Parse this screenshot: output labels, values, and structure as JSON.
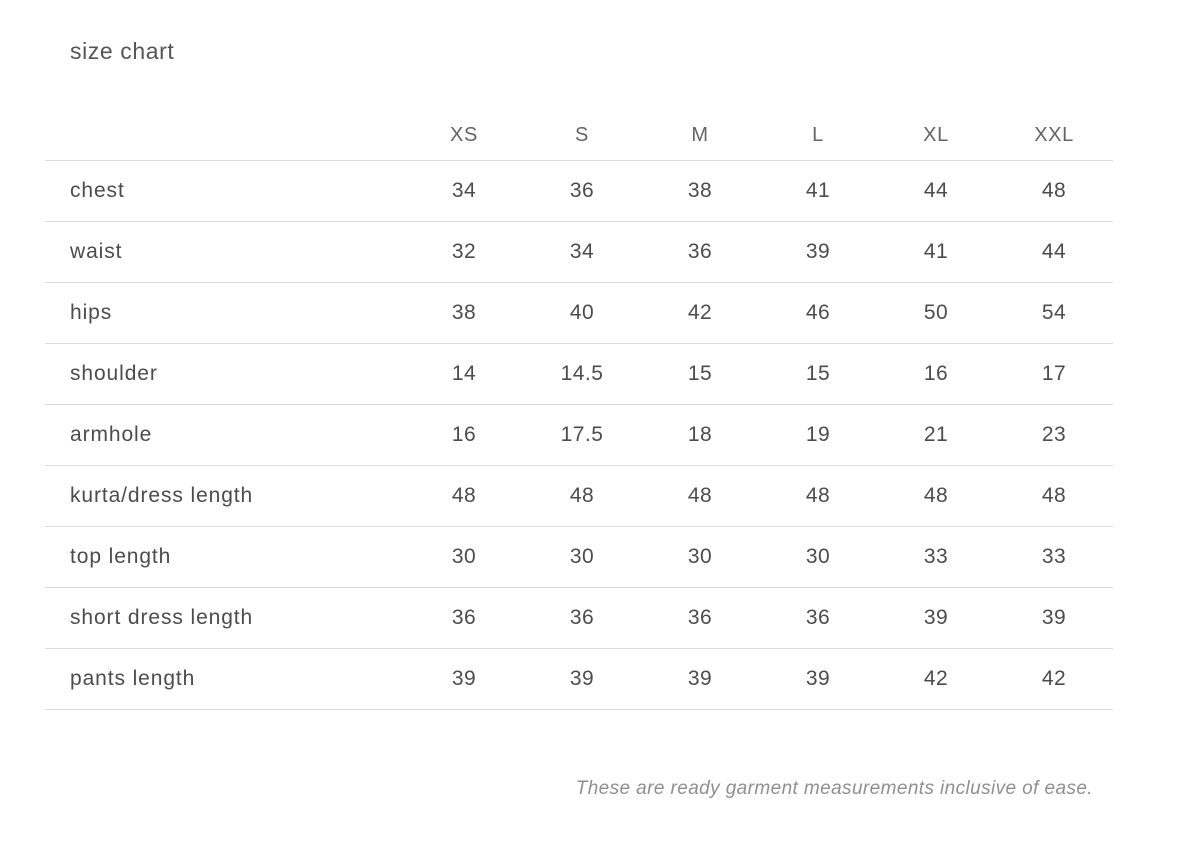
{
  "title": "size chart",
  "footnote": "These are ready garment measurements inclusive of ease.",
  "colors": {
    "text": "#4c4c4c",
    "header_text": "#646464",
    "divider_line": "#dcdcdc",
    "footnote_text": "#8f8f8f",
    "background": "#ffffff"
  },
  "chart_data": {
    "type": "table",
    "title": "size chart",
    "columns": [
      "XS",
      "S",
      "M",
      "L",
      "XL",
      "XXL"
    ],
    "row_labels": [
      "chest",
      "waist",
      "hips",
      "shoulder",
      "armhole",
      "kurta/dress length",
      "top length",
      "short dress length",
      "pants length"
    ],
    "rows": [
      [
        "34",
        "36",
        "38",
        "41",
        "44",
        "48"
      ],
      [
        "32",
        "34",
        "36",
        "39",
        "41",
        "44"
      ],
      [
        "38",
        "40",
        "42",
        "46",
        "50",
        "54"
      ],
      [
        "14",
        "14.5",
        "15",
        "15",
        "16",
        "17"
      ],
      [
        "16",
        "17.5",
        "18",
        "19",
        "21",
        "23"
      ],
      [
        "48",
        "48",
        "48",
        "48",
        "48",
        "48"
      ],
      [
        "30",
        "30",
        "30",
        "30",
        "33",
        "33"
      ],
      [
        "36",
        "36",
        "36",
        "36",
        "39",
        "39"
      ],
      [
        "39",
        "39",
        "39",
        "39",
        "42",
        "42"
      ]
    ],
    "footnote": "These are ready garment measurements inclusive of ease.",
    "layout": {
      "grid": "horizontal-dividers-only",
      "label_column_align": "left",
      "value_columns_align": "center"
    }
  }
}
